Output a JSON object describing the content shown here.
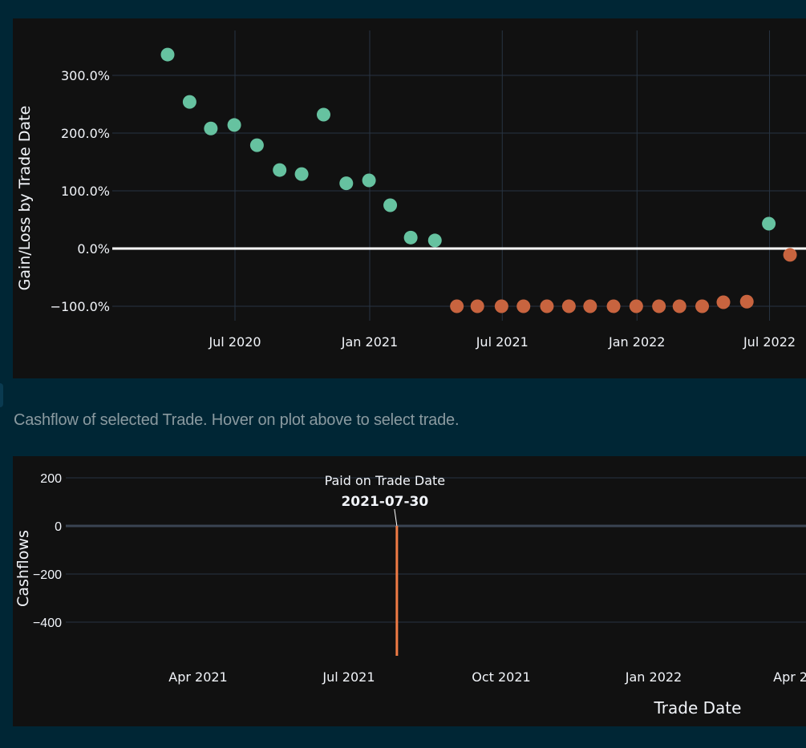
{
  "caption": "Cashflow of selected Trade. Hover on plot above to select trade.",
  "colors": {
    "gain": "#66c2a0",
    "loss": "#c8643f",
    "bar": "#ef7b45",
    "page_bg": "#002635",
    "plot_bg": "#111111",
    "grid": "#283442"
  },
  "chart_data": [
    {
      "type": "scatter",
      "title": "",
      "xlabel": "",
      "ylabel": "Gain/Loss by Trade Date",
      "x_tick_labels": [
        "Jul 2020",
        "Jan 2021",
        "Jul 2021",
        "Jan 2022",
        "Jul 2022"
      ],
      "x_ticks": [
        "2020-07-01",
        "2021-01-01",
        "2021-07-01",
        "2022-01-01",
        "2022-07-01"
      ],
      "y_tick_labels": [
        "300.0%",
        "200.0%",
        "100.0%",
        "0.0%",
        "−100.0%"
      ],
      "y_ticks": [
        300,
        200,
        100,
        0,
        -100
      ],
      "grid": true,
      "zero_line": true,
      "points": [
        {
          "x": "2020-03-31",
          "y": 336
        },
        {
          "x": "2020-04-30",
          "y": 254
        },
        {
          "x": "2020-05-29",
          "y": 208
        },
        {
          "x": "2020-06-30",
          "y": 214
        },
        {
          "x": "2020-07-31",
          "y": 179
        },
        {
          "x": "2020-08-31",
          "y": 136
        },
        {
          "x": "2020-09-30",
          "y": 129
        },
        {
          "x": "2020-10-30",
          "y": 232
        },
        {
          "x": "2020-11-30",
          "y": 113
        },
        {
          "x": "2020-12-31",
          "y": 118
        },
        {
          "x": "2021-01-29",
          "y": 75
        },
        {
          "x": "2021-02-26",
          "y": 19
        },
        {
          "x": "2021-03-31",
          "y": 14
        },
        {
          "x": "2021-04-30",
          "y": -100
        },
        {
          "x": "2021-05-28",
          "y": -100
        },
        {
          "x": "2021-06-30",
          "y": -100
        },
        {
          "x": "2021-07-30",
          "y": -100
        },
        {
          "x": "2021-08-31",
          "y": -100
        },
        {
          "x": "2021-09-30",
          "y": -100
        },
        {
          "x": "2021-10-29",
          "y": -100
        },
        {
          "x": "2021-11-30",
          "y": -100
        },
        {
          "x": "2021-12-31",
          "y": -100
        },
        {
          "x": "2022-01-31",
          "y": -100
        },
        {
          "x": "2022-02-28",
          "y": -100
        },
        {
          "x": "2022-03-31",
          "y": -100
        },
        {
          "x": "2022-04-29",
          "y": -93
        },
        {
          "x": "2022-05-31",
          "y": -92
        },
        {
          "x": "2022-06-30",
          "y": 43
        },
        {
          "x": "2022-07-29",
          "y": -11
        }
      ]
    },
    {
      "type": "bar",
      "title": "",
      "xlabel": "Trade Date",
      "ylabel": "Cashflows",
      "x_tick_labels": [
        "Apr 2021",
        "Jul 2021",
        "Oct 2021",
        "Jan 2022",
        "Apr 2022"
      ],
      "x_ticks": [
        "2021-04-01",
        "2021-07-01",
        "2021-10-01",
        "2022-01-01",
        "2022-04-01"
      ],
      "y_tick_labels": [
        "200",
        "0",
        "−200",
        "−400"
      ],
      "y_ticks": [
        200,
        0,
        -200,
        -400
      ],
      "grid": true,
      "bars": [
        {
          "x": "2021-07-30",
          "y": -540
        }
      ],
      "annotation": {
        "line1": "Paid on Trade Date",
        "line2": "2021-07-30",
        "x": "2021-07-30",
        "y": 0
      }
    }
  ]
}
